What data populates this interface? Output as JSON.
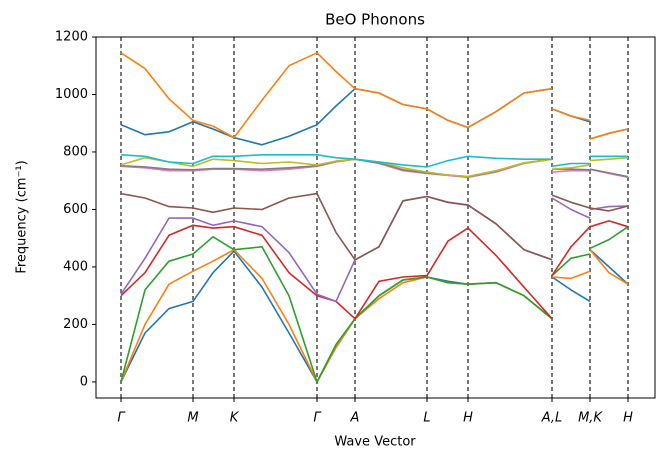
{
  "chart_data": {
    "type": "line",
    "title": "BeO Phonons",
    "xlabel": "Wave Vector",
    "ylabel": "Frequency (cm⁻¹)",
    "x": [
      0,
      0.24,
      0.48,
      0.72,
      0.92,
      1.13,
      1.41,
      1.68,
      1.96,
      2.15,
      2.34,
      2.58,
      2.82,
      3.06,
      3.27,
      3.47,
      3.75,
      4.03,
      4.31,
      null,
      4.31,
      4.5,
      4.69,
      null,
      4.69,
      4.88,
      5.07
    ],
    "xlim": [
      -0.25,
      5.34
    ],
    "xticks": [
      {
        "value": 0,
        "label": "Γ"
      },
      {
        "value": 0.72,
        "label": "M"
      },
      {
        "value": 1.13,
        "label": "K"
      },
      {
        "value": 1.96,
        "label": "Γ"
      },
      {
        "value": 2.34,
        "label": "A"
      },
      {
        "value": 3.06,
        "label": "L"
      },
      {
        "value": 3.47,
        "label": "H"
      },
      {
        "value": 4.31,
        "label": "A,L"
      },
      {
        "value": 4.69,
        "label": "M,K"
      },
      {
        "value": 5.07,
        "label": "H"
      }
    ],
    "ylim": [
      -56,
      1200
    ],
    "yticks": [
      0,
      200,
      400,
      600,
      800,
      1000,
      1200
    ],
    "series": [
      {
        "color": "#1f77b4",
        "values": [
          0,
          170,
          255,
          280,
          380,
          455,
          330,
          170,
          0,
          120,
          220,
          300,
          355,
          365,
          350,
          340,
          345,
          300,
          220,
          null,
          365,
          320,
          280,
          null,
          460,
          400,
          340
        ]
      },
      {
        "color": "#ff7f0e",
        "values": [
          0,
          200,
          340,
          385,
          420,
          460,
          360,
          200,
          0,
          120,
          220,
          290,
          345,
          365,
          345,
          340,
          345,
          300,
          220,
          null,
          365,
          360,
          385,
          null,
          460,
          380,
          340
        ]
      },
      {
        "color": "#2ca02c",
        "values": [
          0,
          320,
          420,
          445,
          505,
          460,
          470,
          300,
          0,
          130,
          220,
          300,
          355,
          365,
          345,
          340,
          345,
          300,
          220,
          null,
          370,
          430,
          445,
          null,
          465,
          495,
          540
        ]
      },
      {
        "color": "#d62728",
        "values": [
          300,
          380,
          510,
          545,
          535,
          540,
          510,
          380,
          300,
          280,
          220,
          350,
          365,
          370,
          490,
          535,
          440,
          330,
          220,
          null,
          370,
          470,
          540,
          null,
          540,
          560,
          540
        ]
      },
      {
        "color": "#9467bd",
        "values": [
          305,
          430,
          570,
          570,
          545,
          560,
          540,
          450,
          305,
          280,
          425,
          470,
          630,
          645,
          625,
          615,
          550,
          460,
          425,
          null,
          640,
          600,
          570,
          null,
          600,
          610,
          612
        ]
      },
      {
        "color": "#8c564b",
        "values": [
          655,
          640,
          610,
          605,
          590,
          605,
          600,
          640,
          655,
          520,
          425,
          470,
          630,
          645,
          625,
          615,
          550,
          460,
          425,
          null,
          650,
          625,
          605,
          null,
          605,
          595,
          612
        ]
      },
      {
        "color": "#e377c2",
        "values": [
          750,
          745,
          735,
          735,
          740,
          740,
          735,
          740,
          750,
          765,
          775,
          760,
          735,
          725,
          718,
          712,
          730,
          760,
          775,
          null,
          730,
          735,
          735,
          null,
          740,
          725,
          712
        ]
      },
      {
        "color": "#7f7f7f",
        "values": [
          752,
          748,
          740,
          738,
          742,
          742,
          740,
          745,
          752,
          768,
          775,
          762,
          738,
          727,
          720,
          714,
          733,
          762,
          775,
          null,
          740,
          740,
          738,
          null,
          740,
          727,
          714
        ]
      },
      {
        "color": "#bcbd22",
        "values": [
          755,
          780,
          765,
          750,
          775,
          770,
          760,
          765,
          755,
          768,
          775,
          765,
          745,
          730,
          720,
          715,
          735,
          762,
          775,
          null,
          740,
          745,
          755,
          null,
          770,
          775,
          780
        ]
      },
      {
        "color": "#17becf",
        "values": [
          790,
          785,
          765,
          760,
          785,
          785,
          790,
          790,
          790,
          780,
          775,
          765,
          755,
          748,
          770,
          785,
          778,
          775,
          775,
          null,
          750,
          760,
          760,
          null,
          785,
          785,
          785
        ]
      },
      {
        "color": "#1f77b4",
        "values": [
          895,
          860,
          870,
          905,
          880,
          850,
          825,
          855,
          895,
          960,
          1020,
          1005,
          965,
          950,
          910,
          885,
          940,
          1005,
          1020,
          null,
          950,
          925,
          905,
          null,
          845,
          865,
          880
        ]
      },
      {
        "color": "#ff7f0e",
        "values": [
          1145,
          1090,
          985,
          910,
          890,
          850,
          980,
          1100,
          1145,
          1080,
          1020,
          1005,
          965,
          950,
          910,
          885,
          940,
          1005,
          1020,
          null,
          950,
          925,
          910,
          null,
          845,
          865,
          880
        ]
      }
    ]
  }
}
